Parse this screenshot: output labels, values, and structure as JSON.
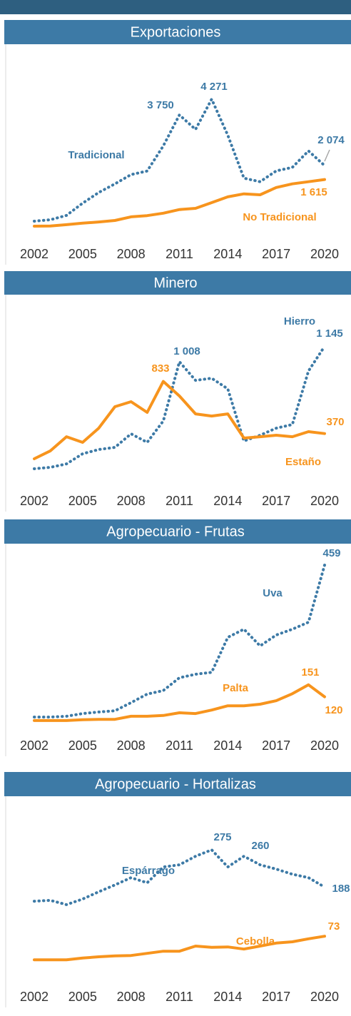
{
  "chart_data": [
    {
      "type": "line",
      "title": "Exportaciones",
      "x": [
        2002,
        2003,
        2004,
        2005,
        2006,
        2007,
        2008,
        2009,
        2010,
        2011,
        2012,
        2013,
        2014,
        2015,
        2016,
        2017,
        2018,
        2019,
        2020
      ],
      "xlim": [
        2002,
        2020
      ],
      "xticks": [
        2002,
        2005,
        2008,
        2011,
        2014,
        2017,
        2020
      ],
      "ylim": [
        0,
        5900
      ],
      "series": [
        {
          "name": "Tradicional",
          "color": "#3d7aa6",
          "style": "dotted",
          "values": [
            237,
            284,
            427,
            830,
            1185,
            1470,
            1777,
            1896,
            2725,
            3750,
            3270,
            4271,
            3080,
            1660,
            1540,
            1900,
            2015,
            2560,
            2074
          ],
          "value_labels": [
            null,
            null,
            null,
            null,
            null,
            null,
            null,
            null,
            null,
            "3 750",
            null,
            "4 271",
            null,
            null,
            null,
            null,
            null,
            null,
            "2 074"
          ]
        },
        {
          "name": "No Tradicional",
          "color": "#f7941d",
          "style": "solid",
          "values": [
            70,
            75,
            120,
            170,
            210,
            260,
            380,
            420,
            500,
            620,
            660,
            850,
            1040,
            1140,
            1110,
            1350,
            1470,
            1540,
            1615
          ],
          "value_labels": [
            null,
            null,
            null,
            null,
            null,
            null,
            null,
            null,
            null,
            null,
            null,
            null,
            null,
            null,
            null,
            null,
            null,
            null,
            "1 615"
          ]
        }
      ]
    },
    {
      "type": "line",
      "title": "Minero",
      "x": [
        2002,
        2003,
        2004,
        2005,
        2006,
        2007,
        2008,
        2009,
        2010,
        2011,
        2012,
        2013,
        2014,
        2015,
        2016,
        2017,
        2018,
        2019,
        2020
      ],
      "xlim": [
        2002,
        2020
      ],
      "xticks": [
        2002,
        2005,
        2008,
        2011,
        2014,
        2017,
        2020
      ],
      "ylim": [
        0,
        1560
      ],
      "series": [
        {
          "name": "Hierro",
          "color": "#3d7aa6",
          "style": "dotted",
          "values": [
            57,
            70,
            100,
            190,
            228,
            247,
            368,
            292,
            482,
            1008,
            843,
            862,
            767,
            304,
            355,
            418,
            450,
            926,
            1145
          ],
          "value_labels": [
            null,
            null,
            null,
            null,
            null,
            null,
            null,
            null,
            null,
            "1 008",
            null,
            null,
            null,
            null,
            null,
            null,
            null,
            null,
            "1 145"
          ]
        },
        {
          "name": "Estaño",
          "color": "#f7941d",
          "style": "solid",
          "values": [
            146,
            216,
            342,
            292,
            418,
            609,
            653,
            558,
            833,
            704,
            545,
            526,
            545,
            330,
            342,
            355,
            342,
            387,
            370
          ],
          "value_labels": [
            null,
            null,
            null,
            null,
            null,
            null,
            null,
            null,
            "833",
            null,
            null,
            null,
            null,
            null,
            null,
            null,
            null,
            null,
            "370"
          ]
        }
      ]
    },
    {
      "type": "line",
      "title": "Agropecuario - Frutas",
      "x": [
        2002,
        2003,
        2004,
        2005,
        2006,
        2007,
        2008,
        2009,
        2010,
        2011,
        2012,
        2013,
        2014,
        2015,
        2016,
        2017,
        2018,
        2019,
        2020
      ],
      "xlim": [
        2002,
        2020
      ],
      "xticks": [
        2002,
        2005,
        2008,
        2011,
        2014,
        2017,
        2020
      ],
      "ylim": [
        0,
        481
      ],
      "series": [
        {
          "name": "Uva",
          "color": "#3d7aa6",
          "style": "dotted",
          "values": [
            68,
            68,
            70,
            77,
            81,
            84,
            105,
            127,
            136,
            169,
            178,
            183,
            273,
            294,
            251,
            279,
            294,
            312,
            459
          ],
          "value_labels": [
            null,
            null,
            null,
            null,
            null,
            null,
            null,
            null,
            null,
            null,
            null,
            null,
            null,
            null,
            null,
            null,
            null,
            null,
            "459"
          ]
        },
        {
          "name": "Palta",
          "color": "#f7941d",
          "style": "solid",
          "values": [
            59,
            59,
            59,
            61,
            62,
            62,
            70,
            70,
            72,
            79,
            77,
            86,
            97,
            97,
            101,
            110,
            128,
            151,
            120
          ],
          "value_labels": [
            null,
            null,
            null,
            null,
            null,
            null,
            null,
            null,
            null,
            null,
            null,
            null,
            null,
            null,
            null,
            null,
            null,
            "151",
            "120"
          ]
        }
      ]
    },
    {
      "type": "line",
      "title": "Agropecuario - Hortalizas",
      "x": [
        2002,
        2003,
        2004,
        2005,
        2006,
        2007,
        2008,
        2009,
        2010,
        2011,
        2012,
        2013,
        2014,
        2015,
        2016,
        2017,
        2018,
        2019,
        2020
      ],
      "xlim": [
        2002,
        2020
      ],
      "xticks": [
        2002,
        2005,
        2008,
        2011,
        2014,
        2017,
        2020
      ],
      "ylim": [
        0,
        377
      ],
      "series": [
        {
          "name": "Espárrago",
          "color": "#3d7aa6",
          "style": "dotted",
          "values": [
            155,
            157,
            147,
            160,
            177,
            193,
            210,
            198,
            235,
            240,
            260,
            275,
            235,
            260,
            240,
            230,
            218,
            210,
            188
          ],
          "value_labels": [
            null,
            null,
            null,
            null,
            null,
            null,
            null,
            null,
            null,
            null,
            null,
            "275",
            null,
            "260",
            null,
            null,
            null,
            null,
            "188"
          ]
        },
        {
          "name": "Cebolla",
          "color": "#f7941d",
          "style": "solid",
          "values": [
            18,
            18,
            18,
            22,
            25,
            27,
            28,
            33,
            38,
            38,
            50,
            47,
            48,
            43,
            50,
            57,
            60,
            67,
            73
          ],
          "value_labels": [
            null,
            null,
            null,
            null,
            null,
            null,
            null,
            null,
            null,
            null,
            null,
            null,
            null,
            null,
            null,
            null,
            null,
            null,
            "73"
          ]
        }
      ]
    }
  ]
}
